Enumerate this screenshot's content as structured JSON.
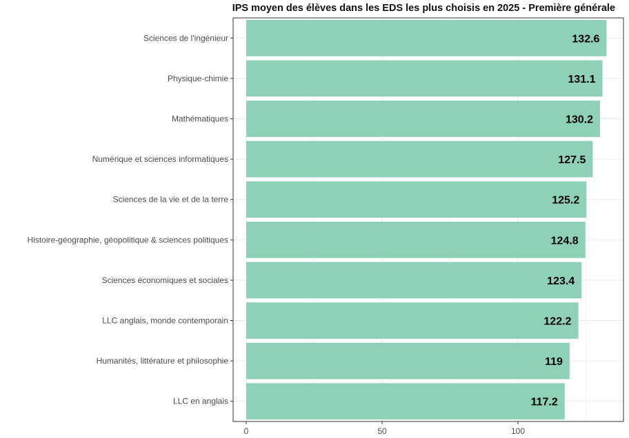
{
  "chart_data": {
    "type": "bar",
    "orientation": "horizontal",
    "title": "IPS moyen des élèves dans les EDS les plus choisis en 2025 - Première générale",
    "xlabel": "",
    "ylabel": "",
    "categories": [
      "Sciences de l'ingénieur",
      "Physique-chimie",
      "Mathématiques",
      "Numérique et sciences informatiques",
      "Sciences de la vie et de la terre",
      "Histoire-géographie, géopolitique & sciences politiques",
      "Sciences économiques et sociales",
      "LLC anglais, monde contemporain",
      "Humanités, littérature et philosophie",
      "LLC en anglais"
    ],
    "values": [
      132.6,
      131.1,
      130.2,
      127.5,
      125.2,
      124.8,
      123.4,
      122.2,
      119,
      117.2
    ],
    "data_labels": [
      "132.6",
      "131.1",
      "130.2",
      "127.5",
      "125.2",
      "124.8",
      "123.4",
      "122.2",
      "119",
      "117.2"
    ],
    "xlim": [
      0,
      140
    ],
    "xticks": [
      0,
      50,
      100
    ],
    "xtick_labels": [
      "0",
      "50",
      "100"
    ],
    "bar_color": "#8fd1b8",
    "grid": true,
    "panel_border": true,
    "legend": "none"
  }
}
